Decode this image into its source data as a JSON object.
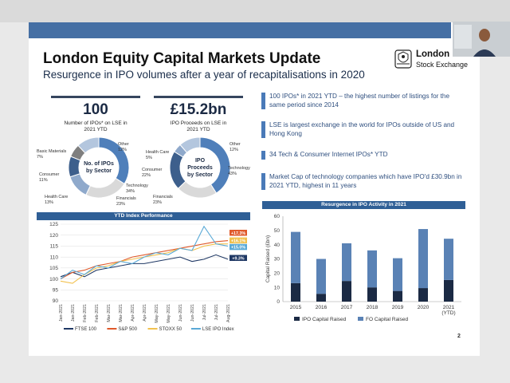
{
  "slide": {
    "title": "London Equity Capital Markets Update",
    "subtitle": "Resurgence in IPO volumes after a year of recapitalisations in 2020",
    "page_number": "2",
    "logo": {
      "line1": "London",
      "line2": "Stock Exchange"
    }
  },
  "stats": [
    {
      "value": "100",
      "caption": [
        "Number of IPOs* on LSE in",
        "2021 YTD"
      ]
    },
    {
      "value": "£15.2bn",
      "caption": [
        "IPO Proceeds on LSE in",
        "2021 YTD"
      ]
    }
  ],
  "donuts": [
    {
      "center": [
        "No. of IPOs",
        "by Sector"
      ],
      "slices": [
        {
          "name": "Technology",
          "pct": "34%",
          "value": 34,
          "color": "#4f7fba"
        },
        {
          "name": "Financials",
          "pct": "23%",
          "value": 23,
          "color": "#d9d9d9"
        },
        {
          "name": "Health Care",
          "pct": "13%",
          "value": 13,
          "color": "#8fa9cb"
        },
        {
          "name": "Consumer",
          "pct": "11%",
          "value": 11,
          "color": "#3d5f8c"
        },
        {
          "name": "Basic Materials",
          "pct": "7%",
          "value": 7,
          "color": "#7f7f7f"
        },
        {
          "name": "Other",
          "pct": "12%",
          "value": 12,
          "color": "#b3c6de"
        }
      ]
    },
    {
      "center": [
        "IPO",
        "Proceeds",
        "by Sector"
      ],
      "slices": [
        {
          "name": "Technology",
          "pct": "43%",
          "value": 43,
          "color": "#4f7fba"
        },
        {
          "name": "Financials",
          "pct": "23%",
          "value": 23,
          "color": "#d9d9d9"
        },
        {
          "name": "Consumer",
          "pct": "22%",
          "value": 22,
          "color": "#3d5f8c"
        },
        {
          "name": "Health Care",
          "pct": "5%",
          "value": 5,
          "color": "#8fa9cb"
        },
        {
          "name": "Other",
          "pct": "12%",
          "value": 12,
          "color": "#b3c6de"
        }
      ]
    }
  ],
  "bullets": [
    "100 IPOs* in 2021 YTD – the highest number of listings for the same period since 2014",
    "LSE is largest exchange in the world for IPOs outside of US and Hong Kong",
    "34 Tech & Consumer Internet IPOs* YTD",
    "Market Cap of technology companies which have IPO'd £30.9bn in 2021 YTD, highest in 11 years"
  ],
  "colors": {
    "accent": "#456fa4",
    "dark": "#1b2a44",
    "panel_head": "#2f5f96"
  },
  "chart_data": [
    {
      "type": "line",
      "title": "YTD Index Performance",
      "x": [
        "Jan-2021",
        "Jan-2021",
        "Feb-2021",
        "Feb-2021",
        "Mar-2021",
        "Mar-2021",
        "Apr-2021",
        "Apr-2021",
        "May-2021",
        "May-2021",
        "Jun-2021",
        "Jun-2021",
        "Jul-2021",
        "Jul-2021",
        "Aug-2021"
      ],
      "ylim": [
        90,
        125
      ],
      "yticks": [
        90,
        95,
        100,
        105,
        110,
        115,
        120,
        125
      ],
      "grid": true,
      "legend": "bottom",
      "series": [
        {
          "name": "FTSE 100",
          "color": "#1f3864",
          "end_label": "+9.3%",
          "values": [
            101,
            103,
            101,
            104,
            105,
            106,
            107,
            107,
            108,
            109,
            110,
            108,
            109,
            111,
            109
          ]
        },
        {
          "name": "S&P 500",
          "color": "#e0592a",
          "end_label": "+17.3%",
          "values": [
            100,
            103,
            104,
            106,
            107,
            108,
            110,
            111,
            112,
            113,
            114,
            115,
            116,
            117,
            117.5
          ]
        },
        {
          "name": "STOXX 50",
          "color": "#f2c14e",
          "end_label": "+16.1%",
          "values": [
            99,
            98,
            102,
            105,
            106,
            108,
            109,
            110,
            111,
            112,
            114,
            113,
            115,
            116,
            116
          ]
        },
        {
          "name": "LSE IPO Index",
          "color": "#5aa9d6",
          "end_label": "+15.0%",
          "values": [
            100,
            104,
            102,
            106,
            105,
            108,
            107,
            110,
            112,
            111,
            114,
            113,
            124,
            116,
            115
          ]
        }
      ]
    },
    {
      "type": "bar",
      "title": "Resurgence in IPO Activity in 2021",
      "ylabel": "Capital Raised (£bn)",
      "categories": [
        "2015",
        "2016",
        "2017",
        "2018",
        "2019",
        "2020",
        [
          "2021",
          "(YTD)"
        ]
      ],
      "ylim": [
        0,
        60
      ],
      "yticks": [
        0,
        10,
        20,
        30,
        40,
        50,
        60
      ],
      "legend": "bottom",
      "series": [
        {
          "name": "IPO Capital Raised",
          "color": "#1b2a44",
          "values": [
            13,
            5.5,
            14.5,
            10,
            7.5,
            9.5,
            15.2
          ]
        },
        {
          "name": "FO Capital Raised",
          "color": "#5a82b5",
          "values": [
            36,
            24.5,
            26.5,
            26,
            23,
            41.5,
            29
          ]
        }
      ]
    }
  ]
}
